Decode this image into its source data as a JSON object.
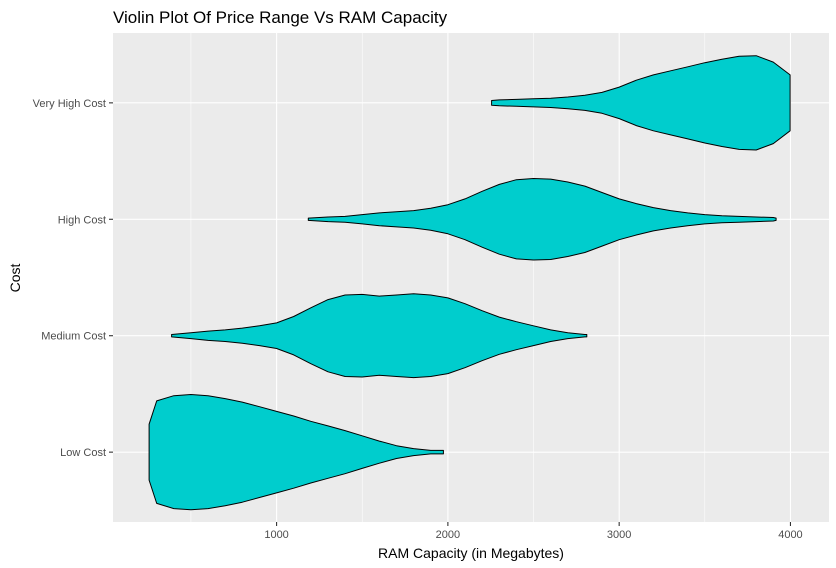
{
  "chart_data": {
    "type": "violin",
    "title": "Violin Plot Of Price Range Vs RAM Capacity",
    "xlabel": "RAM Capacity (in Megabytes)",
    "ylabel": "Cost",
    "categories": [
      "Low Cost",
      "Medium Cost",
      "High Cost",
      "Very High Cost"
    ],
    "x_ticks": [
      1000,
      2000,
      3000,
      4000
    ],
    "xlim": [
      45,
      4225
    ],
    "grid": true,
    "fill_color": "#00cdcd",
    "outline_color": "#000000",
    "panel_color": "#ebebeb",
    "grid_color": "#ffffff",
    "violins": [
      {
        "category": "Low Cost",
        "x": [
          256,
          300,
          400,
          500,
          600,
          700,
          800,
          900,
          1000,
          1100,
          1200,
          1300,
          1400,
          1500,
          1600,
          1700,
          1800,
          1900,
          1974
        ],
        "half_width": [
          0.48,
          0.88,
          0.97,
          0.99,
          0.97,
          0.92,
          0.86,
          0.78,
          0.7,
          0.62,
          0.53,
          0.45,
          0.37,
          0.28,
          0.19,
          0.11,
          0.06,
          0.03,
          0.03
        ]
      },
      {
        "category": "Medium Cost",
        "x": [
          387,
          500,
          600,
          700,
          800,
          900,
          1000,
          1100,
          1200,
          1300,
          1400,
          1500,
          1600,
          1700,
          1800,
          1900,
          2000,
          2100,
          2200,
          2300,
          2400,
          2500,
          2600,
          2700,
          2800,
          2811
        ],
        "half_width": [
          0.02,
          0.05,
          0.08,
          0.1,
          0.13,
          0.17,
          0.22,
          0.33,
          0.48,
          0.62,
          0.7,
          0.71,
          0.68,
          0.7,
          0.72,
          0.7,
          0.65,
          0.55,
          0.43,
          0.32,
          0.24,
          0.17,
          0.1,
          0.05,
          0.02,
          0.02
        ]
      },
      {
        "category": "High Cost",
        "x": [
          1185,
          1300,
          1400,
          1500,
          1600,
          1700,
          1800,
          1900,
          2000,
          2100,
          2200,
          2300,
          2400,
          2500,
          2600,
          2700,
          2800,
          2900,
          3000,
          3100,
          3200,
          3300,
          3400,
          3500,
          3600,
          3700,
          3800,
          3900,
          3916
        ],
        "half_width": [
          0.02,
          0.04,
          0.05,
          0.08,
          0.11,
          0.13,
          0.15,
          0.19,
          0.25,
          0.35,
          0.48,
          0.6,
          0.68,
          0.7,
          0.69,
          0.64,
          0.57,
          0.46,
          0.35,
          0.27,
          0.2,
          0.15,
          0.11,
          0.08,
          0.06,
          0.05,
          0.04,
          0.03,
          0.02
        ]
      },
      {
        "category": "Very High Cost",
        "x": [
          2255,
          2300,
          2400,
          2500,
          2600,
          2700,
          2800,
          2900,
          3000,
          3100,
          3200,
          3300,
          3400,
          3500,
          3600,
          3700,
          3800,
          3900,
          3998
        ],
        "half_width": [
          0.04,
          0.05,
          0.06,
          0.07,
          0.08,
          0.1,
          0.13,
          0.18,
          0.27,
          0.39,
          0.48,
          0.55,
          0.62,
          0.69,
          0.75,
          0.8,
          0.81,
          0.7,
          0.48
        ]
      }
    ]
  }
}
